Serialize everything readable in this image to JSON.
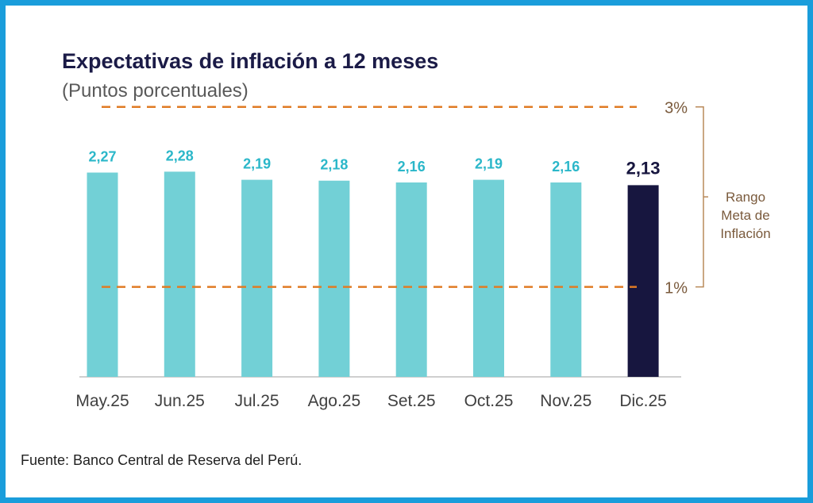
{
  "chart_data": {
    "type": "bar",
    "title": "Expectativas de inflación a 12 meses",
    "subtitle": "(Puntos porcentuales)",
    "categories": [
      "May.25",
      "Jun.25",
      "Jul.25",
      "Ago.25",
      "Set.25",
      "Oct.25",
      "Nov.25",
      "Dic.25"
    ],
    "values": [
      2.27,
      2.28,
      2.19,
      2.18,
      2.16,
      2.19,
      2.16,
      2.13
    ],
    "data_labels": [
      "2,27",
      "2,28",
      "2,19",
      "2,18",
      "2,16",
      "2,19",
      "2,16",
      "2,13"
    ],
    "ylim": [
      0,
      3.5
    ],
    "reference_lines": [
      {
        "value": 3,
        "label": "3%"
      },
      {
        "value": 1,
        "label": "1%"
      }
    ],
    "range_annotation": "Rango Meta de Inflación",
    "range_annotation_lines": [
      "Rango",
      "Meta de",
      "Inflación"
    ],
    "highlight_index": 7,
    "colors": {
      "bar": "#72d0d6",
      "bar_highlight": "#17163f",
      "label": "#2bb7c9",
      "label_highlight": "#17163f",
      "reference_line": "#e07b24",
      "reference_text": "#7a5a3c",
      "bracket": "#b98a5a",
      "axis": "#bfbfbf",
      "category_text": "#404040"
    },
    "grid": false,
    "legend": "none"
  },
  "source": "Fuente: Banco Central de Reserva del Perú."
}
